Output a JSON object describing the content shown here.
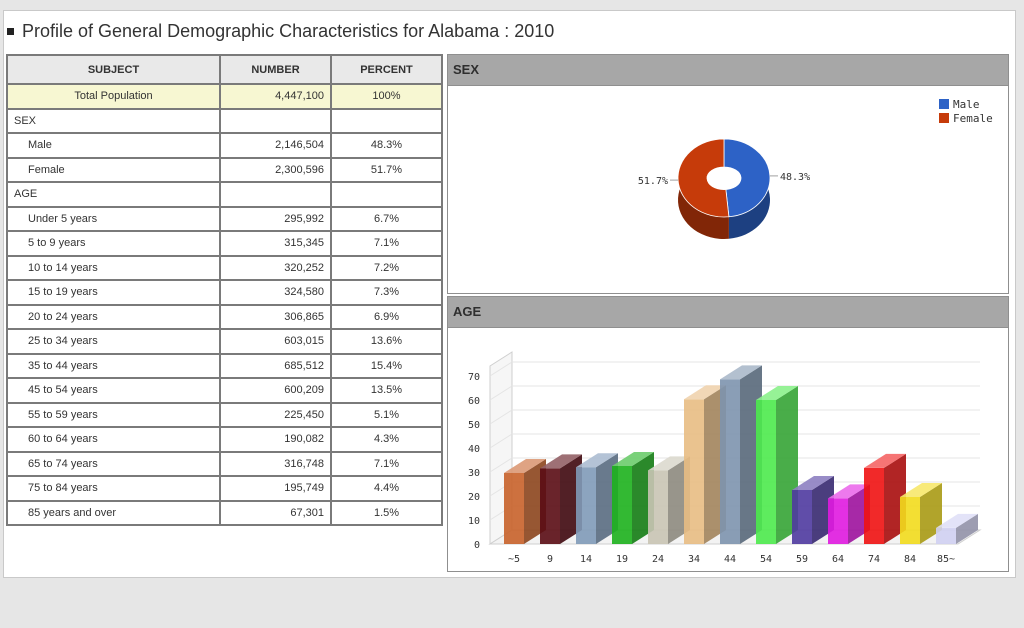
{
  "title": "Profile of General Demographic Characteristics for Alabama : 2010",
  "table": {
    "headers": [
      "SUBJECT",
      "NUMBER",
      "PERCENT"
    ],
    "total": {
      "label": "Total Population",
      "number": "4,447,100",
      "percent": "100%"
    },
    "sex_section": "SEX",
    "sex_rows": [
      {
        "label": "Male",
        "number": "2,146,504",
        "percent": "48.3%"
      },
      {
        "label": "Female",
        "number": "2,300,596",
        "percent": "51.7%"
      }
    ],
    "age_section": "AGE",
    "age_rows": [
      {
        "label": "Under 5 years",
        "number": "295,992",
        "percent": "6.7%"
      },
      {
        "label": "5 to 9 years",
        "number": "315,345",
        "percent": "7.1%"
      },
      {
        "label": "10 to 14 years",
        "number": "320,252",
        "percent": "7.2%"
      },
      {
        "label": "15 to 19 years",
        "number": "324,580",
        "percent": "7.3%"
      },
      {
        "label": "20 to 24 years",
        "number": "306,865",
        "percent": "6.9%"
      },
      {
        "label": "25 to 34 years",
        "number": "603,015",
        "percent": "13.6%"
      },
      {
        "label": "35 to 44 years",
        "number": "685,512",
        "percent": "15.4%"
      },
      {
        "label": "45 to 54 years",
        "number": "600,209",
        "percent": "13.5%"
      },
      {
        "label": "55 to 59 years",
        "number": "225,450",
        "percent": "5.1%"
      },
      {
        "label": "60 to 64 years",
        "number": "190,082",
        "percent": "4.3%"
      },
      {
        "label": "65 to 74 years",
        "number": "316,748",
        "percent": "7.1%"
      },
      {
        "label": "75 to 84 years",
        "number": "195,749",
        "percent": "4.4%"
      },
      {
        "label": "85 years and over",
        "number": "67,301",
        "percent": "1.5%"
      }
    ]
  },
  "sex_panel_title": "SEX",
  "age_panel_title": "AGE",
  "chart_data": [
    {
      "type": "pie",
      "title": "SEX",
      "labels": [
        "Male",
        "Female"
      ],
      "values": [
        48.3,
        51.7
      ],
      "value_labels": [
        "48.3%",
        "51.7%"
      ],
      "colors": [
        "#2d62c6",
        "#c63b0a"
      ],
      "legend_position": "top-right",
      "donut": true
    },
    {
      "type": "bar",
      "title": "AGE",
      "categories": [
        "~5",
        "9",
        "14",
        "19",
        "24",
        "34",
        "44",
        "54",
        "59",
        "64",
        "74",
        "84",
        "85~"
      ],
      "values": [
        29.6,
        31.5,
        32.0,
        32.5,
        30.7,
        60.3,
        68.6,
        60.0,
        22.5,
        19.0,
        31.7,
        19.6,
        6.7
      ],
      "colors": [
        "#c8622a",
        "#5a0c14",
        "#7f9ab8",
        "#1db11d",
        "#c9c4b4",
        "#e8bc83",
        "#7d94ae",
        "#4cea4c",
        "#4f3aa0",
        "#e019e0",
        "#f01212",
        "#f2dc1d",
        "#d0d0f2"
      ],
      "ylim": [
        0,
        70
      ],
      "yticks": [
        "0",
        "10",
        "20",
        "30",
        "40",
        "50",
        "60",
        "70"
      ],
      "grid": true,
      "style": "3d"
    }
  ]
}
